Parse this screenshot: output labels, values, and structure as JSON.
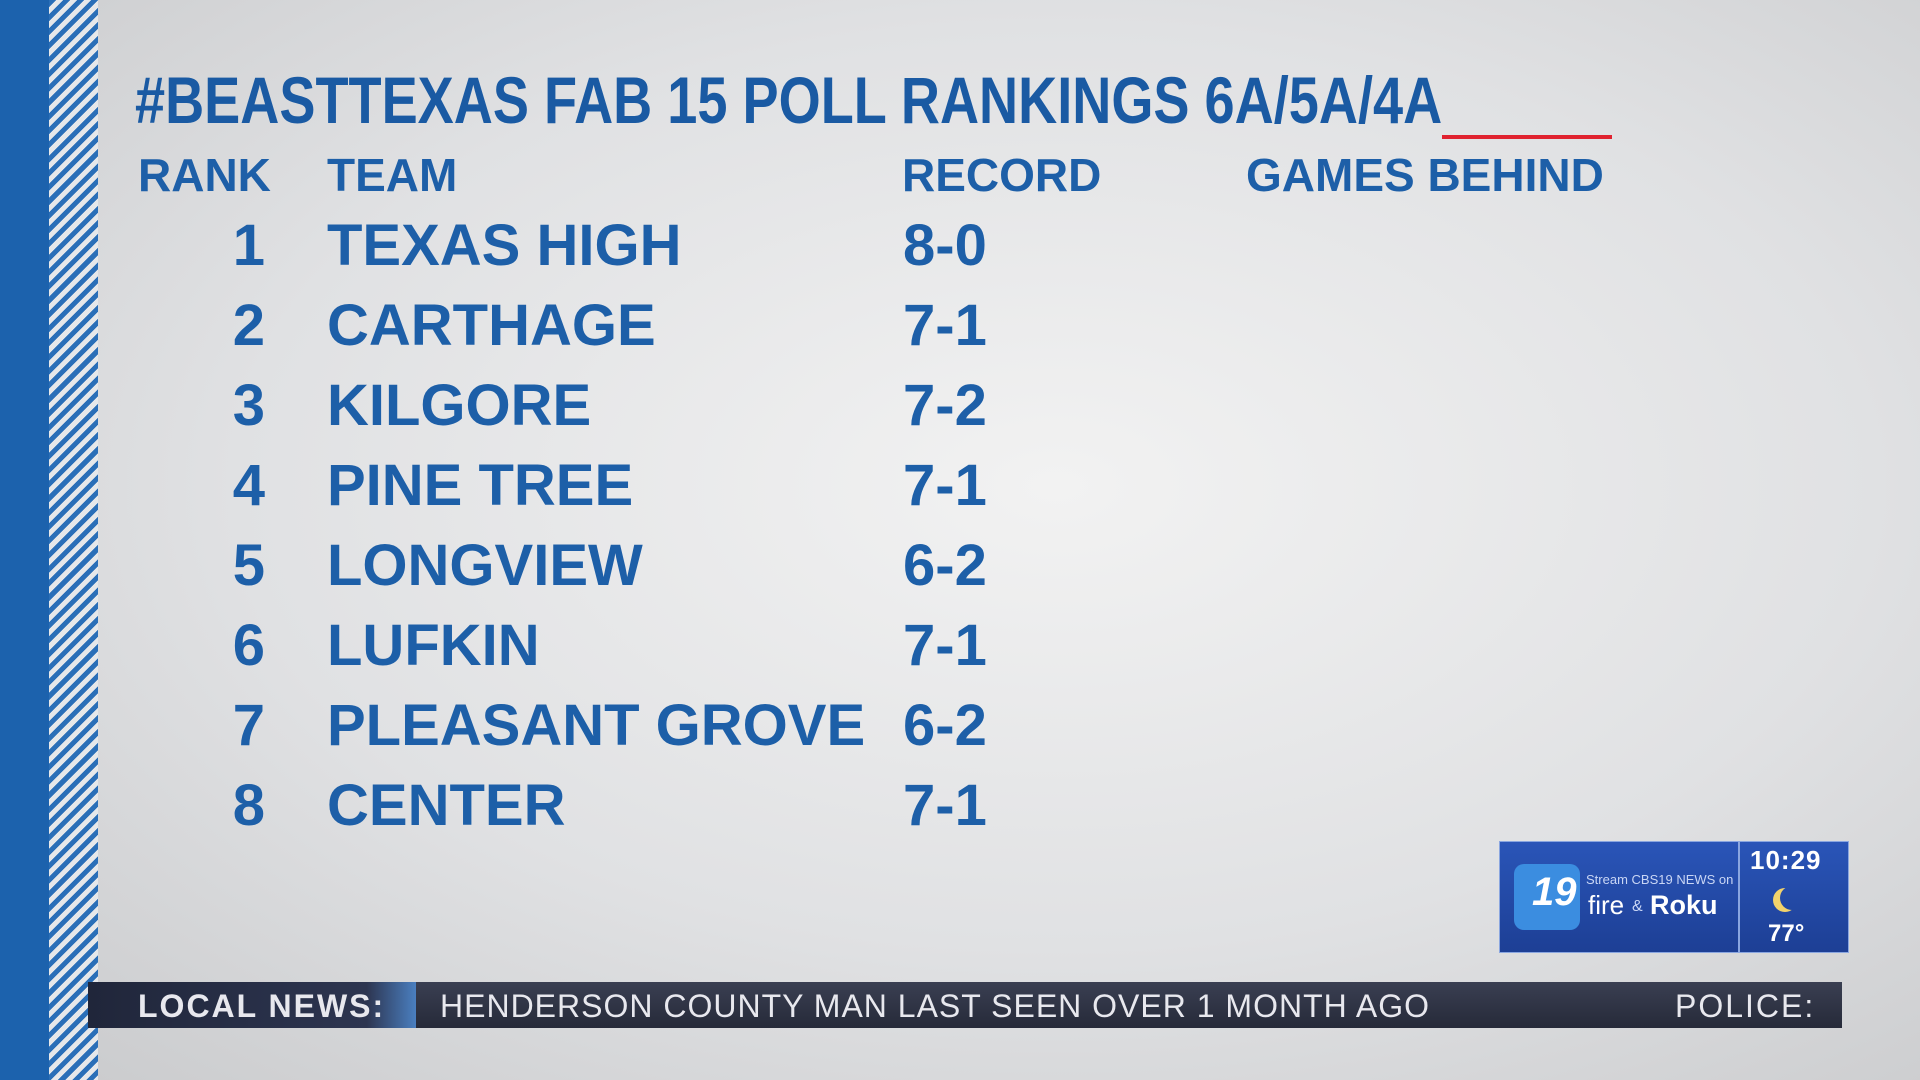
{
  "header": {
    "title": "#BEASTTEXAS FAB 15 POLL RANKINGS 6A/5A/4A"
  },
  "table": {
    "columns": [
      "RANK",
      "TEAM",
      "RECORD",
      "GAMES BEHIND"
    ],
    "rows": [
      [
        "1",
        "TEXAS HIGH",
        "8-0"
      ],
      [
        "2",
        "CARTHAGE",
        "7-1"
      ],
      [
        "3",
        "KILGORE",
        "7-2"
      ],
      [
        "4",
        "PINE TREE",
        "7-1"
      ],
      [
        "5",
        "LONGVIEW",
        "6-2"
      ],
      [
        "6",
        "LUFKIN",
        "7-1"
      ],
      [
        "7",
        "PLEASANT GROVE",
        "6-2"
      ],
      [
        "8",
        "CENTER",
        "7-1"
      ]
    ]
  },
  "ticker": {
    "label": "LOCAL NEWS:",
    "headline": "HENDERSON COUNTY MAN LAST SEEN OVER 1 MONTH AGO",
    "next": "POLICE:"
  },
  "bug": {
    "channel": "19",
    "stream": "Stream CBS19 NEWS on",
    "fire": "fire",
    "amp": "&",
    "roku": "Roku",
    "time": "10:29",
    "temp": "77°"
  }
}
